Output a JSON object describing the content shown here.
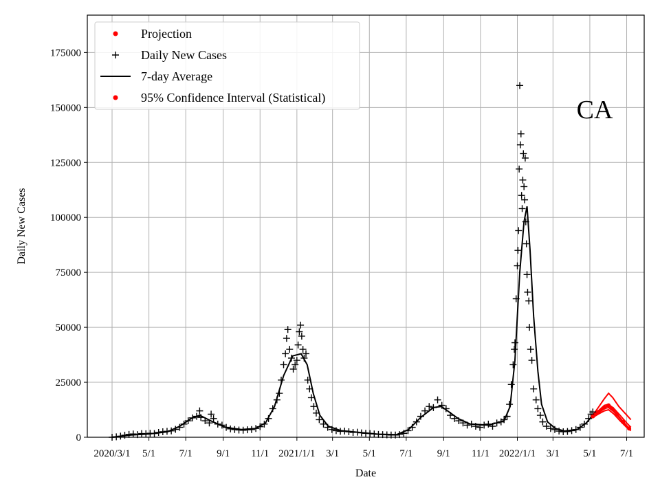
{
  "chart_data": {
    "type": "scatter",
    "title": "",
    "region_label": "CA",
    "xlabel": "Date",
    "ylabel": "Daily New Cases",
    "xlim": [
      "2020-01-20",
      "2022-07-30"
    ],
    "ylim": [
      0,
      192000
    ],
    "grid": true,
    "legend_position": "top-left",
    "x_ticks": [
      {
        "date": "2020-03-01",
        "label": "2020/3/1"
      },
      {
        "date": "2020-05-01",
        "label": "5/1"
      },
      {
        "date": "2020-07-01",
        "label": "7/1"
      },
      {
        "date": "2020-09-01",
        "label": "9/1"
      },
      {
        "date": "2020-11-01",
        "label": "11/1"
      },
      {
        "date": "2021-01-01",
        "label": "2021/1/1"
      },
      {
        "date": "2021-03-01",
        "label": "3/1"
      },
      {
        "date": "2021-05-01",
        "label": "5/1"
      },
      {
        "date": "2021-07-01",
        "label": "7/1"
      },
      {
        "date": "2021-09-01",
        "label": "9/1"
      },
      {
        "date": "2021-11-01",
        "label": "11/1"
      },
      {
        "date": "2022-01-01",
        "label": "2022/1/1"
      },
      {
        "date": "2022-03-01",
        "label": "3/1"
      },
      {
        "date": "2022-05-01",
        "label": "5/1"
      },
      {
        "date": "2022-07-01",
        "label": "7/1"
      }
    ],
    "y_ticks": [
      0,
      25000,
      50000,
      75000,
      100000,
      125000,
      150000,
      175000
    ],
    "legend": [
      {
        "label": "Projection",
        "marker": "dot",
        "color": "#ff0000"
      },
      {
        "label": "Daily New Cases",
        "marker": "plus",
        "color": "#000000"
      },
      {
        "label": "7-day Average",
        "marker": "line",
        "color": "#000000"
      },
      {
        "label": "95% Confidence Interval (Statistical)",
        "marker": "dot",
        "color": "#ff0000"
      }
    ],
    "series": [
      {
        "name": "Daily New Cases",
        "color": "#000000",
        "marker": "plus",
        "points": [
          [
            "2020-03-01",
            0
          ],
          [
            "2020-03-08",
            200
          ],
          [
            "2020-03-15",
            500
          ],
          [
            "2020-03-22",
            900
          ],
          [
            "2020-03-29",
            1300
          ],
          [
            "2020-04-05",
            1500
          ],
          [
            "2020-04-12",
            1200
          ],
          [
            "2020-04-19",
            1700
          ],
          [
            "2020-04-26",
            1600
          ],
          [
            "2020-05-03",
            1800
          ],
          [
            "2020-05-10",
            1700
          ],
          [
            "2020-05-17",
            2200
          ],
          [
            "2020-05-24",
            2500
          ],
          [
            "2020-05-31",
            2700
          ],
          [
            "2020-06-07",
            2900
          ],
          [
            "2020-06-14",
            3600
          ],
          [
            "2020-06-21",
            4500
          ],
          [
            "2020-06-28",
            6000
          ],
          [
            "2020-07-05",
            7500
          ],
          [
            "2020-07-12",
            8800
          ],
          [
            "2020-07-19",
            9500
          ],
          [
            "2020-07-24",
            12000
          ],
          [
            "2020-07-26",
            9000
          ],
          [
            "2020-08-02",
            7500
          ],
          [
            "2020-08-09",
            6500
          ],
          [
            "2020-08-12",
            10500
          ],
          [
            "2020-08-16",
            8500
          ],
          [
            "2020-08-23",
            6000
          ],
          [
            "2020-08-30",
            5500
          ],
          [
            "2020-09-06",
            4500
          ],
          [
            "2020-09-13",
            3800
          ],
          [
            "2020-09-20",
            3500
          ],
          [
            "2020-09-27",
            3300
          ],
          [
            "2020-10-04",
            3200
          ],
          [
            "2020-10-11",
            3400
          ],
          [
            "2020-10-18",
            3500
          ],
          [
            "2020-10-25",
            4000
          ],
          [
            "2020-11-01",
            4800
          ],
          [
            "2020-11-08",
            6000
          ],
          [
            "2020-11-15",
            8500
          ],
          [
            "2020-11-22",
            13000
          ],
          [
            "2020-11-29",
            17000
          ],
          [
            "2020-12-03",
            20000
          ],
          [
            "2020-12-06",
            26000
          ],
          [
            "2020-12-10",
            33000
          ],
          [
            "2020-12-13",
            38000
          ],
          [
            "2020-12-15",
            45000
          ],
          [
            "2020-12-17",
            49000
          ],
          [
            "2020-12-20",
            40000
          ],
          [
            "2020-12-23",
            36000
          ],
          [
            "2020-12-26",
            31000
          ],
          [
            "2020-12-29",
            33000
          ],
          [
            "2021-01-01",
            35000
          ],
          [
            "2021-01-03",
            42000
          ],
          [
            "2021-01-05",
            48000
          ],
          [
            "2021-01-07",
            51000
          ],
          [
            "2021-01-09",
            46000
          ],
          [
            "2021-01-11",
            40000
          ],
          [
            "2021-01-13",
            36000
          ],
          [
            "2021-01-16",
            38000
          ],
          [
            "2021-01-19",
            26000
          ],
          [
            "2021-01-22",
            22000
          ],
          [
            "2021-01-25",
            18000
          ],
          [
            "2021-01-29",
            14000
          ],
          [
            "2021-02-02",
            11000
          ],
          [
            "2021-02-07",
            8000
          ],
          [
            "2021-02-14",
            6000
          ],
          [
            "2021-02-21",
            4500
          ],
          [
            "2021-02-28",
            3500
          ],
          [
            "2021-03-07",
            3000
          ],
          [
            "2021-03-14",
            2700
          ],
          [
            "2021-03-21",
            2800
          ],
          [
            "2021-03-28",
            2500
          ],
          [
            "2021-04-04",
            2200
          ],
          [
            "2021-04-11",
            2300
          ],
          [
            "2021-04-18",
            2000
          ],
          [
            "2021-04-25",
            1800
          ],
          [
            "2021-05-02",
            1700
          ],
          [
            "2021-05-09",
            1500
          ],
          [
            "2021-05-16",
            1300
          ],
          [
            "2021-05-23",
            1200
          ],
          [
            "2021-05-30",
            1100
          ],
          [
            "2021-06-06",
            1000
          ],
          [
            "2021-06-13",
            1000
          ],
          [
            "2021-06-20",
            1200
          ],
          [
            "2021-06-27",
            1800
          ],
          [
            "2021-07-04",
            3000
          ],
          [
            "2021-07-11",
            4500
          ],
          [
            "2021-07-18",
            7000
          ],
          [
            "2021-07-25",
            9500
          ],
          [
            "2021-08-01",
            12000
          ],
          [
            "2021-08-08",
            14000
          ],
          [
            "2021-08-15",
            13500
          ],
          [
            "2021-08-22",
            17000
          ],
          [
            "2021-08-29",
            14500
          ],
          [
            "2021-09-05",
            13000
          ],
          [
            "2021-09-12",
            10000
          ],
          [
            "2021-09-19",
            8500
          ],
          [
            "2021-09-26",
            7500
          ],
          [
            "2021-10-03",
            6500
          ],
          [
            "2021-10-10",
            5500
          ],
          [
            "2021-10-17",
            6000
          ],
          [
            "2021-10-24",
            5000
          ],
          [
            "2021-10-31",
            4500
          ],
          [
            "2021-11-07",
            5500
          ],
          [
            "2021-11-14",
            6000
          ],
          [
            "2021-11-21",
            5000
          ],
          [
            "2021-11-28",
            6500
          ],
          [
            "2021-12-05",
            7000
          ],
          [
            "2021-12-10",
            8000
          ],
          [
            "2021-12-15",
            9500
          ],
          [
            "2021-12-19",
            15000
          ],
          [
            "2021-12-22",
            24000
          ],
          [
            "2021-12-25",
            33000
          ],
          [
            "2021-12-27",
            40000
          ],
          [
            "2021-12-28",
            43000
          ],
          [
            "2021-12-30",
            63000
          ],
          [
            "2022-01-01",
            78000
          ],
          [
            "2022-01-02",
            85000
          ],
          [
            "2022-01-03",
            94000
          ],
          [
            "2022-01-04",
            122000
          ],
          [
            "2022-01-05",
            160000
          ],
          [
            "2022-01-06",
            133000
          ],
          [
            "2022-01-07",
            138000
          ],
          [
            "2022-01-08",
            110000
          ],
          [
            "2022-01-09",
            104000
          ],
          [
            "2022-01-10",
            117000
          ],
          [
            "2022-01-11",
            129000
          ],
          [
            "2022-01-12",
            114000
          ],
          [
            "2022-01-13",
            108000
          ],
          [
            "2022-01-14",
            127000
          ],
          [
            "2022-01-15",
            98000
          ],
          [
            "2022-01-16",
            88000
          ],
          [
            "2022-01-17",
            74000
          ],
          [
            "2022-01-18",
            66000
          ],
          [
            "2022-01-20",
            62000
          ],
          [
            "2022-01-21",
            50000
          ],
          [
            "2022-01-23",
            40000
          ],
          [
            "2022-01-25",
            35000
          ],
          [
            "2022-01-28",
            22000
          ],
          [
            "2022-02-01",
            17000
          ],
          [
            "2022-02-04",
            13000
          ],
          [
            "2022-02-08",
            10000
          ],
          [
            "2022-02-12",
            7000
          ],
          [
            "2022-02-18",
            5000
          ],
          [
            "2022-02-25",
            4000
          ],
          [
            "2022-03-04",
            3500
          ],
          [
            "2022-03-11",
            2800
          ],
          [
            "2022-03-18",
            2500
          ],
          [
            "2022-03-25",
            2600
          ],
          [
            "2022-04-01",
            3000
          ],
          [
            "2022-04-08",
            3500
          ],
          [
            "2022-04-15",
            4500
          ],
          [
            "2022-04-22",
            6000
          ],
          [
            "2022-04-29",
            8500
          ],
          [
            "2022-05-03",
            10500
          ],
          [
            "2022-05-06",
            11500
          ]
        ]
      },
      {
        "name": "7-day Average",
        "color": "#000000",
        "marker": "line",
        "points": [
          [
            "2020-03-01",
            0
          ],
          [
            "2020-04-01",
            1000
          ],
          [
            "2020-05-01",
            1500
          ],
          [
            "2020-06-01",
            2500
          ],
          [
            "2020-06-21",
            5000
          ],
          [
            "2020-07-10",
            8500
          ],
          [
            "2020-07-24",
            10000
          ],
          [
            "2020-08-15",
            7000
          ],
          [
            "2020-09-05",
            4500
          ],
          [
            "2020-10-01",
            3500
          ],
          [
            "2020-10-25",
            4000
          ],
          [
            "2020-11-10",
            6500
          ],
          [
            "2020-11-25",
            14000
          ],
          [
            "2020-12-10",
            28000
          ],
          [
            "2020-12-25",
            37000
          ],
          [
            "2021-01-08",
            38000
          ],
          [
            "2021-01-18",
            33000
          ],
          [
            "2021-01-28",
            20000
          ],
          [
            "2021-02-08",
            10000
          ],
          [
            "2021-02-22",
            5000
          ],
          [
            "2021-03-15",
            3000
          ],
          [
            "2021-04-15",
            2200
          ],
          [
            "2021-05-15",
            1400
          ],
          [
            "2021-06-15",
            1200
          ],
          [
            "2021-07-05",
            3500
          ],
          [
            "2021-07-25",
            9000
          ],
          [
            "2021-08-15",
            13500
          ],
          [
            "2021-08-28",
            14000
          ],
          [
            "2021-09-10",
            11500
          ],
          [
            "2021-09-25",
            8500
          ],
          [
            "2021-10-15",
            6000
          ],
          [
            "2021-11-15",
            5500
          ],
          [
            "2021-12-10",
            7500
          ],
          [
            "2021-12-20",
            14000
          ],
          [
            "2021-12-28",
            35000
          ],
          [
            "2022-01-05",
            75000
          ],
          [
            "2022-01-12",
            98000
          ],
          [
            "2022-01-17",
            105000
          ],
          [
            "2022-01-22",
            85000
          ],
          [
            "2022-01-28",
            55000
          ],
          [
            "2022-02-04",
            30000
          ],
          [
            "2022-02-10",
            15000
          ],
          [
            "2022-02-20",
            7000
          ],
          [
            "2022-03-05",
            4000
          ],
          [
            "2022-03-20",
            2800
          ],
          [
            "2022-04-10",
            3500
          ],
          [
            "2022-04-25",
            6500
          ],
          [
            "2022-05-06",
            10000
          ]
        ]
      },
      {
        "name": "Projection",
        "color": "#ff0000",
        "marker": "dot",
        "points": [
          [
            "2022-05-06",
            9500
          ],
          [
            "2022-05-15",
            11500
          ],
          [
            "2022-05-25",
            13500
          ],
          [
            "2022-06-01",
            14500
          ],
          [
            "2022-06-07",
            13000
          ],
          [
            "2022-06-15",
            10500
          ],
          [
            "2022-06-25",
            7000
          ],
          [
            "2022-07-05",
            4000
          ]
        ]
      },
      {
        "name": "95% Confidence Interval (Statistical)",
        "color": "#ff0000",
        "marker": "line",
        "bands": [
          [
            [
              "2022-05-06",
              10000
            ],
            [
              "2022-05-15",
              13500
            ],
            [
              "2022-05-25",
              17500
            ],
            [
              "2022-06-01",
              20000
            ],
            [
              "2022-06-08",
              18000
            ],
            [
              "2022-06-18",
              14000
            ],
            [
              "2022-06-28",
              11000
            ],
            [
              "2022-07-08",
              8000
            ]
          ],
          [
            [
              "2022-05-06",
              9500
            ],
            [
              "2022-05-15",
              12000
            ],
            [
              "2022-05-25",
              14500
            ],
            [
              "2022-06-01",
              15000
            ],
            [
              "2022-06-10",
              13000
            ],
            [
              "2022-06-20",
              10000
            ],
            [
              "2022-07-01",
              6500
            ],
            [
              "2022-07-08",
              4500
            ]
          ],
          [
            [
              "2022-05-06",
              9000
            ],
            [
              "2022-05-15",
              11000
            ],
            [
              "2022-05-25",
              13000
            ],
            [
              "2022-06-01",
              13500
            ],
            [
              "2022-06-10",
              11500
            ],
            [
              "2022-06-20",
              8500
            ],
            [
              "2022-07-01",
              5000
            ],
            [
              "2022-07-08",
              3500
            ]
          ],
          [
            [
              "2022-05-06",
              9000
            ],
            [
              "2022-05-15",
              10500
            ],
            [
              "2022-05-25",
              12000
            ],
            [
              "2022-06-01",
              12500
            ],
            [
              "2022-06-10",
              10500
            ],
            [
              "2022-06-20",
              7500
            ],
            [
              "2022-07-01",
              4500
            ],
            [
              "2022-07-08",
              3000
            ]
          ]
        ]
      }
    ]
  }
}
